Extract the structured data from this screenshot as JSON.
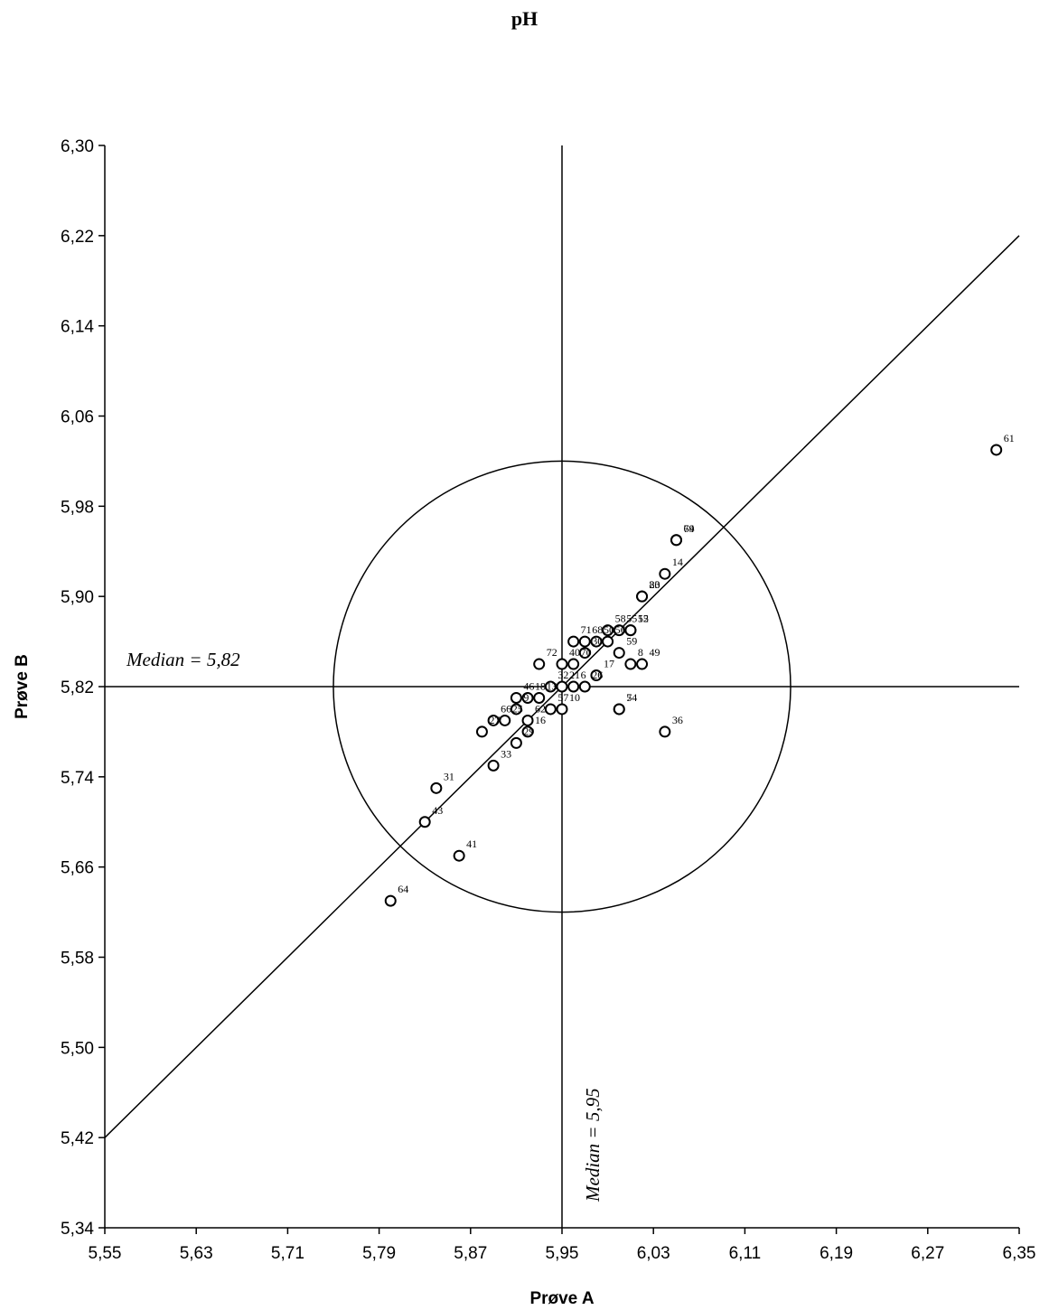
{
  "chart_data": {
    "type": "scatter",
    "title": "pH",
    "xlabel": "Prøve A",
    "ylabel": "Prøve B",
    "xlim": [
      5.55,
      6.35
    ],
    "ylim": [
      5.34,
      6.3
    ],
    "x_ticks": [
      "5,55",
      "5,63",
      "5,71",
      "5,79",
      "5,87",
      "5,95",
      "6,03",
      "6,11",
      "6,19",
      "6,27",
      "6,35"
    ],
    "y_ticks": [
      "5,34",
      "5,42",
      "5,50",
      "5,58",
      "5,66",
      "5,74",
      "5,82",
      "5,90",
      "5,98",
      "6,06",
      "6,14",
      "6,22",
      "6,30"
    ],
    "grid": false,
    "median_x": 5.95,
    "median_y": 5.82,
    "median_x_label": "Median = 5,95",
    "median_y_label": "Median = 5,82",
    "diagonal_line": [
      [
        5.55,
        5.42
      ],
      [
        6.35,
        6.22
      ]
    ],
    "circle": {
      "center": [
        5.95,
        5.82
      ],
      "radius": 0.2
    },
    "points": [
      {
        "id": "61",
        "x": 6.33,
        "y": 6.03
      },
      {
        "id": "69",
        "x": 6.05,
        "y": 5.95
      },
      {
        "id": "74",
        "x": 6.05,
        "y": 5.95
      },
      {
        "id": "14",
        "x": 6.04,
        "y": 5.92
      },
      {
        "id": "23",
        "x": 6.02,
        "y": 5.9
      },
      {
        "id": "80",
        "x": 6.02,
        "y": 5.9
      },
      {
        "id": "15",
        "x": 6.01,
        "y": 5.87
      },
      {
        "id": "52",
        "x": 6.01,
        "y": 5.87
      },
      {
        "id": "55",
        "x": 6.0,
        "y": 5.87
      },
      {
        "id": "58",
        "x": 5.99,
        "y": 5.87
      },
      {
        "id": "56",
        "x": 5.99,
        "y": 5.86
      },
      {
        "id": "68",
        "x": 5.97,
        "y": 5.86
      },
      {
        "id": "50",
        "x": 5.98,
        "y": 5.86
      },
      {
        "id": "49",
        "x": 6.02,
        "y": 5.84
      },
      {
        "id": "8",
        "x": 6.01,
        "y": 5.84
      },
      {
        "id": "59",
        "x": 6.0,
        "y": 5.85
      },
      {
        "id": "30",
        "x": 5.97,
        "y": 5.85
      },
      {
        "id": "71",
        "x": 5.96,
        "y": 5.86
      },
      {
        "id": "17",
        "x": 5.98,
        "y": 5.83
      },
      {
        "id": "70",
        "x": 5.96,
        "y": 5.84
      },
      {
        "id": "40",
        "x": 5.95,
        "y": 5.84
      },
      {
        "id": "72",
        "x": 5.93,
        "y": 5.84
      },
      {
        "id": "26",
        "x": 5.97,
        "y": 5.82
      },
      {
        "id": "32",
        "x": 5.94,
        "y": 5.82
      },
      {
        "id": "21",
        "x": 5.95,
        "y": 5.82
      },
      {
        "id": "6",
        "x": 5.96,
        "y": 5.82
      },
      {
        "id": "54",
        "x": 6.0,
        "y": 5.8
      },
      {
        "id": "7",
        "x": 6.0,
        "y": 5.8
      },
      {
        "id": "36",
        "x": 6.04,
        "y": 5.78
      },
      {
        "id": "46",
        "x": 5.91,
        "y": 5.81
      },
      {
        "id": "18",
        "x": 5.92,
        "y": 5.81
      },
      {
        "id": "13",
        "x": 5.93,
        "y": 5.81
      },
      {
        "id": "9",
        "x": 5.91,
        "y": 5.8
      },
      {
        "id": "57",
        "x": 5.94,
        "y": 5.8
      },
      {
        "id": "10",
        "x": 5.95,
        "y": 5.8
      },
      {
        "id": "66",
        "x": 5.89,
        "y": 5.79
      },
      {
        "id": "25",
        "x": 5.9,
        "y": 5.79
      },
      {
        "id": "62",
        "x": 5.92,
        "y": 5.79
      },
      {
        "id": "27",
        "x": 5.88,
        "y": 5.78
      },
      {
        "id": "16",
        "x": 5.92,
        "y": 5.78
      },
      {
        "id": "29",
        "x": 5.91,
        "y": 5.77
      },
      {
        "id": "33",
        "x": 5.89,
        "y": 5.75
      },
      {
        "id": "31",
        "x": 5.84,
        "y": 5.73
      },
      {
        "id": "43",
        "x": 5.83,
        "y": 5.7
      },
      {
        "id": "41",
        "x": 5.86,
        "y": 5.67
      },
      {
        "id": "64",
        "x": 5.8,
        "y": 5.63
      }
    ]
  }
}
